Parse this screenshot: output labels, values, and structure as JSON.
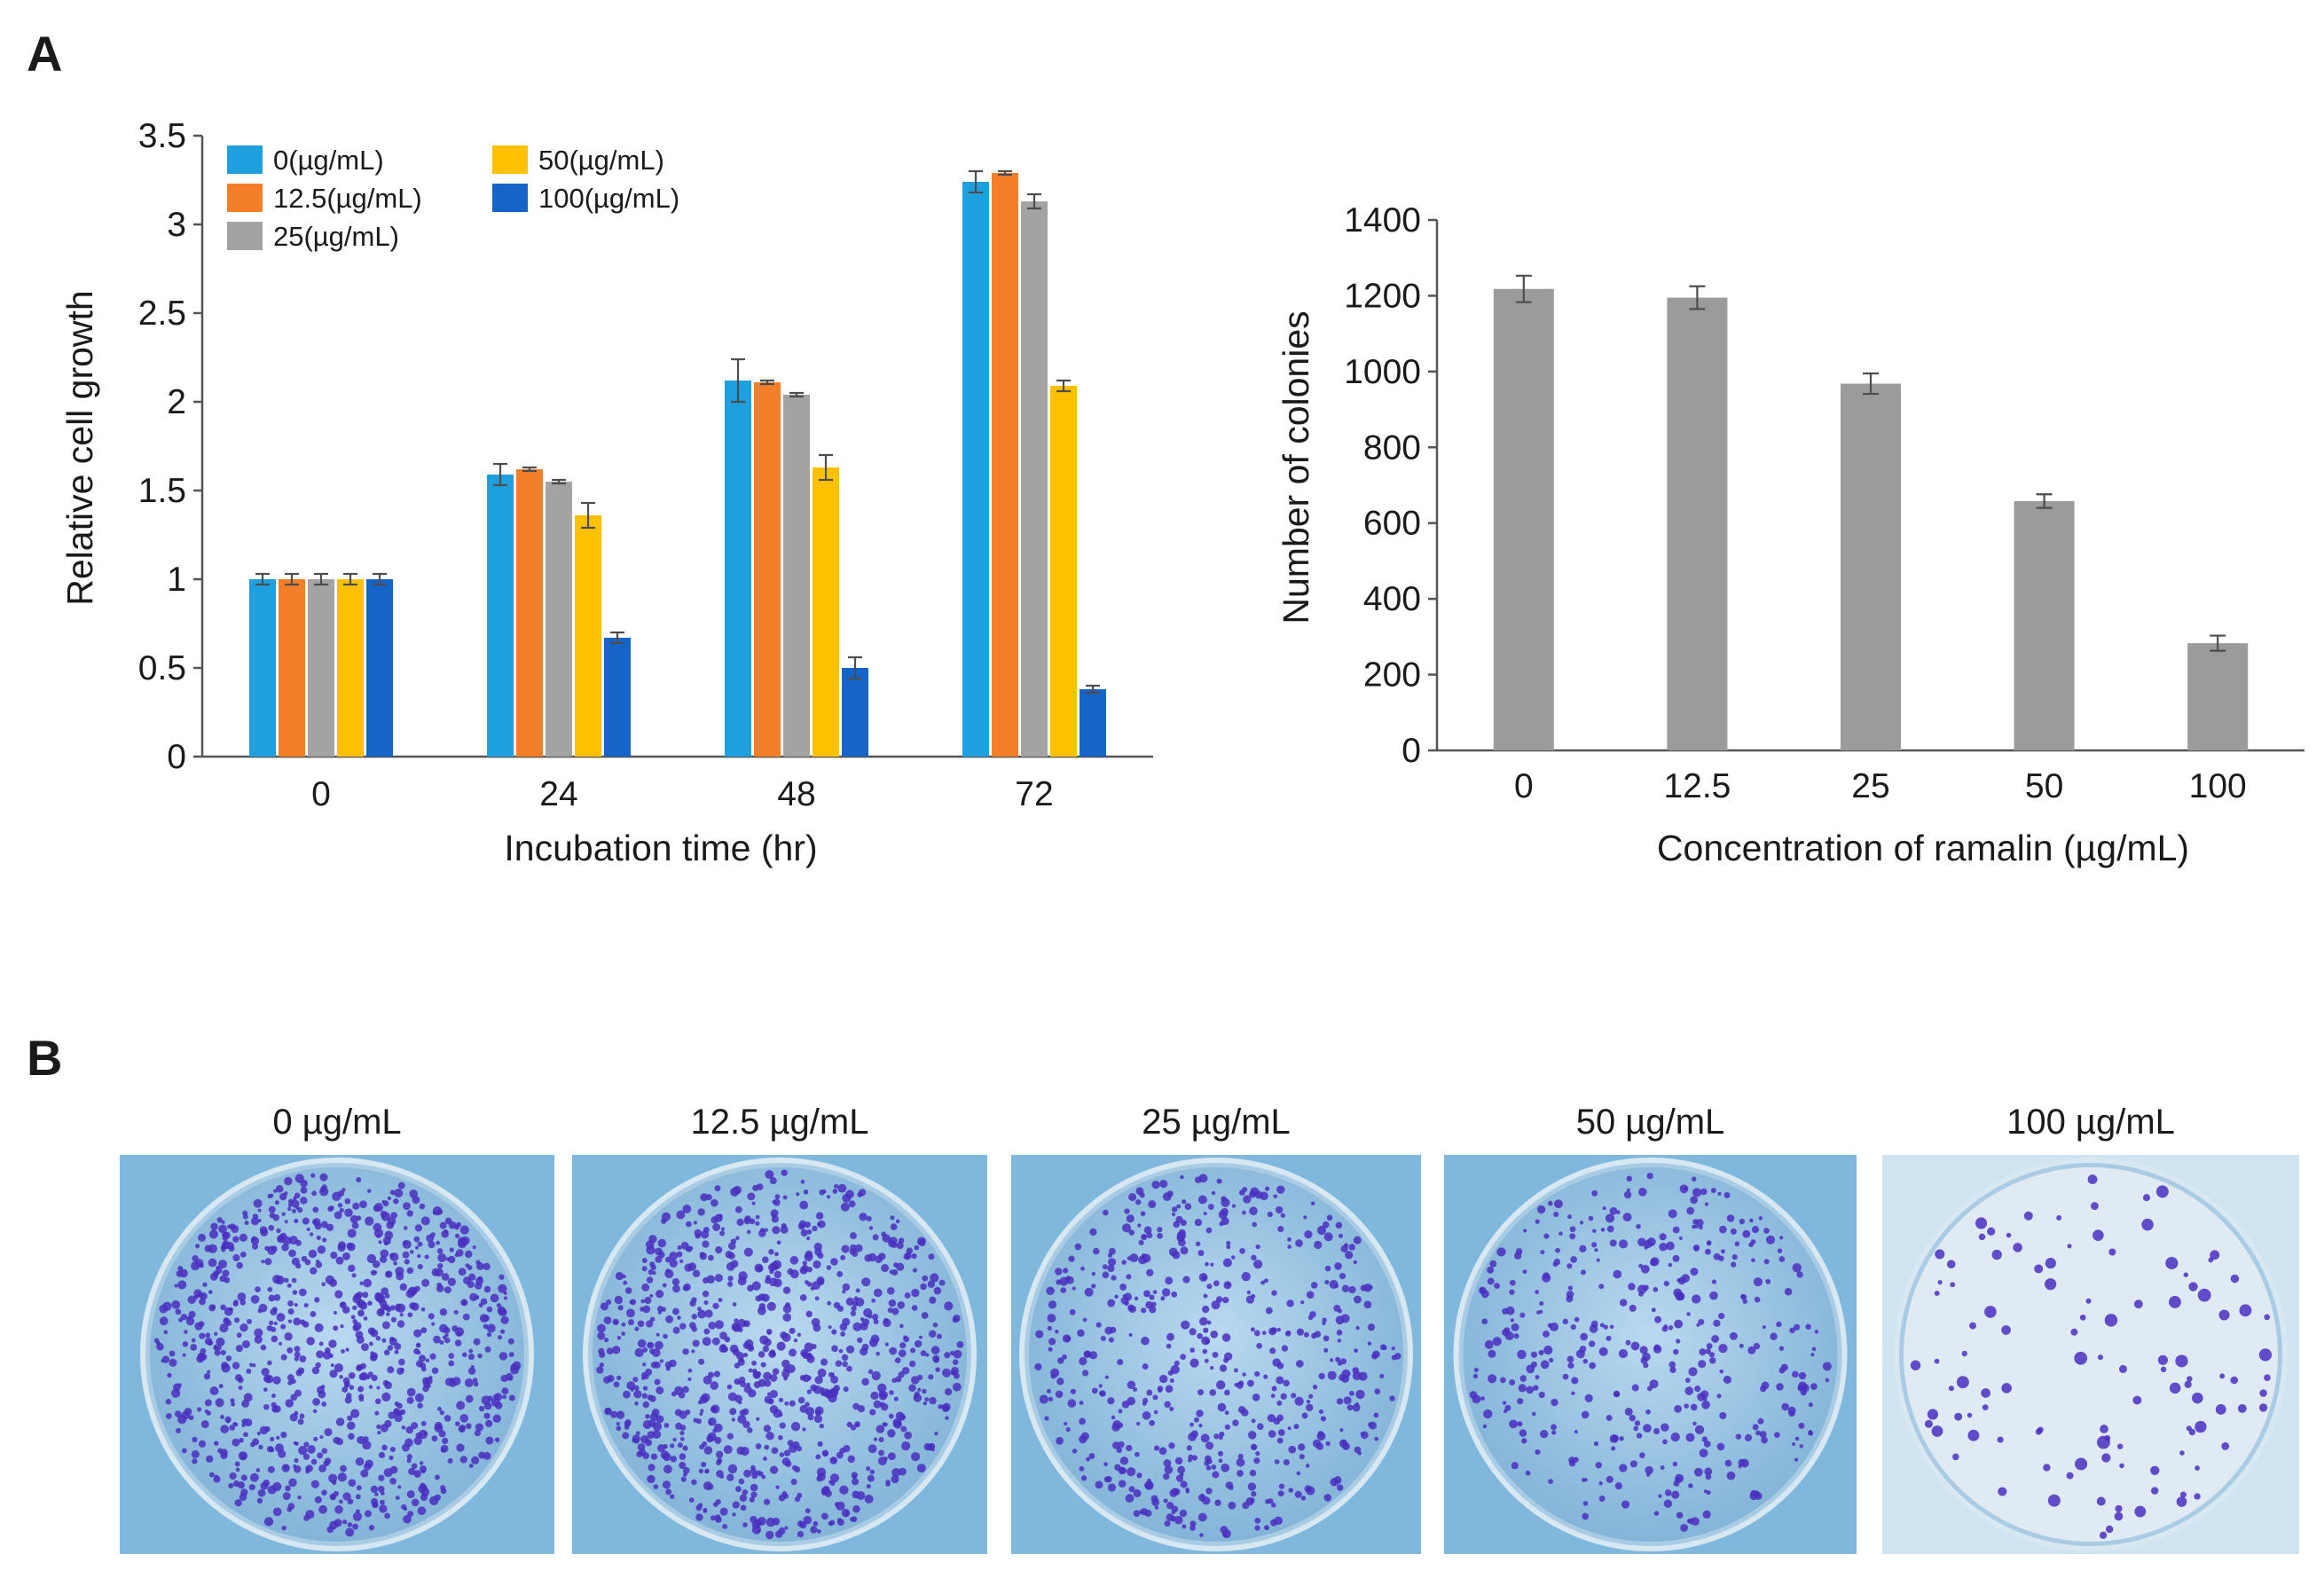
{
  "panels": {
    "a": "A",
    "b": "B"
  },
  "colors": {
    "s0": "#1ea0de",
    "s12": "#f57f29",
    "s25": "#a3a3a3",
    "s50": "#ffc000",
    "s100": "#1565c8",
    "colony_bar": "#9b9b9b",
    "plate_blue": "#7fb8dc",
    "stain": "#4a2fbf"
  },
  "chart_data": [
    {
      "type": "bar",
      "title": "",
      "xlabel": "Incubation time (hr)",
      "ylabel": "Relative cell growth",
      "ylim": [
        0,
        3.5
      ],
      "yticks": [
        "0",
        "0.5",
        "1",
        "1.5",
        "2",
        "2.5",
        "3",
        "3.5"
      ],
      "categories": [
        "0",
        "24",
        "48",
        "72"
      ],
      "legend_position": "top-left",
      "series": [
        {
          "name": "0",
          "unit": "(µg/mL)",
          "color": "#1ea0de",
          "values": [
            1.0,
            1.59,
            2.12,
            3.24
          ],
          "errors": [
            0.03,
            0.06,
            0.12,
            0.06
          ]
        },
        {
          "name": "12.5",
          "unit": "(µg/mL)",
          "color": "#f57f29",
          "values": [
            1.0,
            1.62,
            2.11,
            3.29
          ],
          "errors": [
            0.03,
            0.01,
            0.01,
            0.01
          ]
        },
        {
          "name": "25",
          "unit": "(µg/mL)",
          "color": "#a3a3a3",
          "values": [
            1.0,
            1.55,
            2.04,
            3.13
          ],
          "errors": [
            0.03,
            0.01,
            0.01,
            0.04
          ]
        },
        {
          "name": "50",
          "unit": "(µg/mL)",
          "color": "#ffc000",
          "values": [
            1.0,
            1.36,
            1.63,
            2.09
          ],
          "errors": [
            0.03,
            0.07,
            0.07,
            0.03
          ]
        },
        {
          "name": "100",
          "unit": "(µg/mL)",
          "color": "#1565c8",
          "values": [
            1.0,
            0.67,
            0.5,
            0.38
          ],
          "errors": [
            0.03,
            0.03,
            0.06,
            0.02
          ]
        }
      ]
    },
    {
      "type": "bar",
      "title": "",
      "xlabel": "Concentration of ramalin (µg/mL)",
      "ylabel": "Number of colonies",
      "ylim": [
        0,
        1400
      ],
      "yticks": [
        "0",
        "200",
        "400",
        "600",
        "800",
        "1000",
        "1200",
        "1400"
      ],
      "categories": [
        "0",
        "12.5",
        "25",
        "50",
        "100"
      ],
      "values": [
        1218,
        1195,
        968,
        658,
        283
      ],
      "errors": [
        35,
        30,
        27,
        18,
        20
      ]
    }
  ],
  "plates": [
    {
      "label": "0 µg/mL",
      "density": 1.0
    },
    {
      "label": "12.5 µg/mL",
      "density": 0.95
    },
    {
      "label": "25 µg/mL",
      "density": 0.62
    },
    {
      "label": "50 µg/mL",
      "density": 0.45
    },
    {
      "label": "100 µg/mL",
      "density": 0.12
    }
  ]
}
